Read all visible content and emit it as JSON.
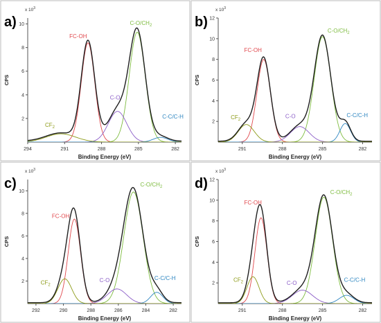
{
  "colors": {
    "envelope": "#1f1f1f",
    "FC-OH": "#e0474c",
    "C-O/CH2": "#7dbb3e",
    "C-O": "#8a5cc7",
    "C-C/C-H": "#2e86c1",
    "CF2": "#8c9a16",
    "axis": "#555555",
    "frame": "#bbbbbb"
  },
  "chart_data": [
    {
      "type": "line",
      "panel_label": "a)",
      "ylabel": "CPS",
      "xlabel": "Binding Energy (eV)",
      "multiplier_label": "x 10",
      "multiplier_exp": "3",
      "xlim": [
        294,
        281.5
      ],
      "ylim": [
        0,
        10.5
      ],
      "xticks": [
        "294",
        "291",
        "288",
        "285",
        "282"
      ],
      "yticks": [
        "2",
        "4",
        "6",
        "8",
        "10"
      ],
      "series": [
        {
          "name": "FC-OH",
          "label_parts": [
            "FC-OH"
          ],
          "sub": "",
          "peak": {
            "center": 289.1,
            "height": 8.4,
            "width": 0.55
          },
          "label_pos": {
            "x": 289.9,
            "y": 8.8
          }
        },
        {
          "name": "C-O/CH2",
          "label_parts": [
            "C-O/CH",
            "2"
          ],
          "sub": "2",
          "peak": {
            "center": 285.1,
            "height": 9.3,
            "width": 0.65
          },
          "label_pos": {
            "x": 284.8,
            "y": 9.9
          }
        },
        {
          "name": "C-O",
          "label_parts": [
            "C-O"
          ],
          "sub": "",
          "peak": {
            "center": 286.7,
            "height": 2.6,
            "width": 0.75
          },
          "label_pos": {
            "x": 286.9,
            "y": 3.6
          }
        },
        {
          "name": "C-C/C-H",
          "label_parts": [
            "C-C/C-H"
          ],
          "sub": "",
          "peak": {
            "center": 283.2,
            "height": 0.4,
            "width": 0.6
          },
          "label_pos": {
            "x": 282.2,
            "y": 2.0
          }
        },
        {
          "name": "CF2",
          "label_parts": [
            "CF",
            "2"
          ],
          "sub": "2",
          "peak": {
            "center": 291.3,
            "height": 0.7,
            "width": 1.2
          },
          "label_pos": {
            "x": 292.2,
            "y": 1.3
          }
        }
      ]
    },
    {
      "type": "line",
      "panel_label": "b)",
      "ylabel": "CPS",
      "xlabel": "Binding Energy (eV)",
      "multiplier_label": "x 10",
      "multiplier_exp": "3",
      "xlim": [
        292.8,
        281.3
      ],
      "ylim": [
        0,
        12
      ],
      "xticks": [
        "291",
        "288",
        "285",
        "282"
      ],
      "yticks": [
        "2",
        "4",
        "6",
        "8",
        "10",
        "12"
      ],
      "series": [
        {
          "name": "FC-OH",
          "label_parts": [
            "FC-OH"
          ],
          "sub": "",
          "peak": {
            "center": 289.4,
            "height": 8.0,
            "width": 0.5
          },
          "label_pos": {
            "x": 290.2,
            "y": 8.7
          }
        },
        {
          "name": "C-O/CH2",
          "label_parts": [
            "C-O/CH",
            "2"
          ],
          "sub": "2",
          "peak": {
            "center": 285.0,
            "height": 10.2,
            "width": 0.62
          },
          "label_pos": {
            "x": 283.8,
            "y": 10.6
          }
        },
        {
          "name": "C-O",
          "label_parts": [
            "C-O"
          ],
          "sub": "",
          "peak": {
            "center": 286.7,
            "height": 1.5,
            "width": 0.7
          },
          "label_pos": {
            "x": 287.4,
            "y": 2.3
          }
        },
        {
          "name": "C-C/C-H",
          "label_parts": [
            "C-C/C-H"
          ],
          "sub": "",
          "peak": {
            "center": 283.3,
            "height": 1.8,
            "width": 0.4
          },
          "label_pos": {
            "x": 282.4,
            "y": 2.4
          }
        },
        {
          "name": "CF2",
          "label_parts": [
            "CF",
            "2"
          ],
          "sub": "2",
          "peak": {
            "center": 290.7,
            "height": 1.7,
            "width": 0.6
          },
          "label_pos": {
            "x": 291.5,
            "y": 2.2
          }
        }
      ]
    },
    {
      "type": "line",
      "panel_label": "c)",
      "ylabel": "CPS",
      "xlabel": "Binding Energy (eV)",
      "multiplier_label": "x 10",
      "multiplier_exp": "3",
      "xlim": [
        292.6,
        281.4
      ],
      "ylim": [
        0,
        11
      ],
      "xticks": [
        "292",
        "290",
        "288",
        "286",
        "284",
        "282"
      ],
      "yticks": [
        "2",
        "4",
        "6",
        "8",
        "10"
      ],
      "series": [
        {
          "name": "FC-OH",
          "label_parts": [
            "FC-OH"
          ],
          "sub": "",
          "peak": {
            "center": 289.2,
            "height": 7.5,
            "width": 0.45
          },
          "label_pos": {
            "x": 290.2,
            "y": 7.6
          }
        },
        {
          "name": "C-O/CH2",
          "label_parts": [
            "C-O/CH",
            "2"
          ],
          "sub": "2",
          "peak": {
            "center": 284.9,
            "height": 9.9,
            "width": 0.7
          },
          "label_pos": {
            "x": 283.6,
            "y": 10.4
          }
        },
        {
          "name": "C-O",
          "label_parts": [
            "C-O"
          ],
          "sub": "",
          "peak": {
            "center": 286.1,
            "height": 1.3,
            "width": 0.7
          },
          "label_pos": {
            "x": 287.0,
            "y": 1.9
          }
        },
        {
          "name": "C-C/C-H",
          "label_parts": [
            "C-C/C-H"
          ],
          "sub": "",
          "peak": {
            "center": 283.2,
            "height": 1.0,
            "width": 0.45
          },
          "label_pos": {
            "x": 282.6,
            "y": 2.1
          }
        },
        {
          "name": "CF2",
          "label_parts": [
            "CF",
            "2"
          ],
          "sub": "2",
          "peak": {
            "center": 289.9,
            "height": 2.2,
            "width": 0.5
          },
          "label_pos": {
            "x": 291.3,
            "y": 1.7
          }
        }
      ]
    },
    {
      "type": "line",
      "panel_label": "d)",
      "ylabel": "CPS",
      "xlabel": "Binding Energy (eV)",
      "multiplier_label": "x 10",
      "multiplier_exp": "3",
      "xlim": [
        292.8,
        281.3
      ],
      "ylim": [
        0,
        12
      ],
      "xticks": [
        "291",
        "288",
        "285",
        "282"
      ],
      "yticks": [
        "2",
        "4",
        "6",
        "8",
        "10",
        "12"
      ],
      "series": [
        {
          "name": "FC-OH",
          "label_parts": [
            "FC-OH"
          ],
          "sub": "",
          "peak": {
            "center": 289.6,
            "height": 8.3,
            "width": 0.45
          },
          "label_pos": {
            "x": 290.2,
            "y": 9.6
          }
        },
        {
          "name": "C-O/CH2",
          "label_parts": [
            "C-O/CH",
            "2"
          ],
          "sub": "2",
          "peak": {
            "center": 284.9,
            "height": 10.3,
            "width": 0.65
          },
          "label_pos": {
            "x": 283.6,
            "y": 10.6
          }
        },
        {
          "name": "C-O",
          "label_parts": [
            "C-O"
          ],
          "sub": "",
          "peak": {
            "center": 286.5,
            "height": 1.3,
            "width": 0.75
          },
          "label_pos": {
            "x": 287.3,
            "y": 1.8
          }
        },
        {
          "name": "C-C/C-H",
          "label_parts": [
            "C-C/C-H"
          ],
          "sub": "",
          "peak": {
            "center": 283.2,
            "height": 0.8,
            "width": 0.55
          },
          "label_pos": {
            "x": 282.6,
            "y": 2.1
          }
        },
        {
          "name": "CF2",
          "label_parts": [
            "CF",
            "2"
          ],
          "sub": "2",
          "peak": {
            "center": 290.2,
            "height": 2.6,
            "width": 0.45
          },
          "label_pos": {
            "x": 291.3,
            "y": 2.1
          }
        }
      ]
    }
  ]
}
